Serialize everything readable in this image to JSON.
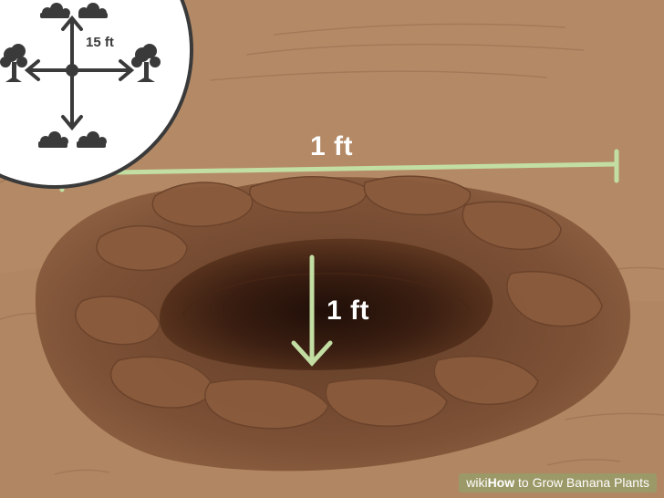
{
  "title": "How to Grow Banana Plants",
  "measurements": {
    "width_label": "1 ft",
    "depth_label": "1 ft",
    "spacing_label": "15 ft"
  },
  "watermark": {
    "brand": "wiki",
    "brand_strong": "How",
    "text": " to Grow Banana Plants"
  },
  "icons": [
    "tree-icon",
    "bush-icon",
    "arrow-icon",
    "hole"
  ],
  "colors": {
    "soil": "#b48a66",
    "hole_dark": "#2b150c",
    "measure_line": "#c2dea3",
    "inset_bg": "#ffffff",
    "icon": "#3a3a3a"
  }
}
